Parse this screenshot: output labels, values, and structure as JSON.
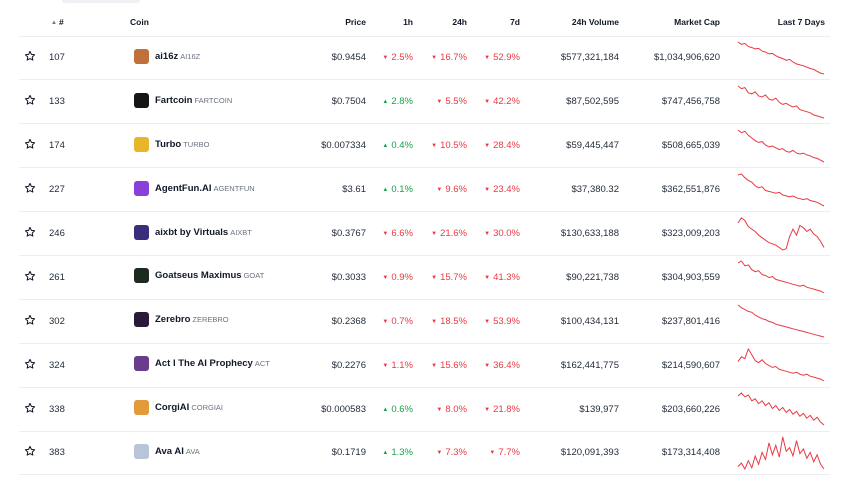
{
  "header": {
    "sort_icon": "triangle-up-icon",
    "rank": "#",
    "coin": "Coin",
    "price": "Price",
    "h1": "1h",
    "h24": "24h",
    "d7": "7d",
    "volume": "24h Volume",
    "market_cap": "Market Cap",
    "last7": "Last 7 Days"
  },
  "colors": {
    "up": "#16a34a",
    "down": "#ea3943",
    "spark": "#ea3943"
  },
  "rows": [
    {
      "rank": "107",
      "name": "ai16z",
      "symbol": "AI16Z",
      "logo": "#c2703a",
      "price": "$0.9454",
      "h1": "2.5%",
      "h1_dir": "down",
      "h24": "16.7%",
      "h24_dir": "down",
      "d7": "52.9%",
      "d7_dir": "down",
      "volume": "$577,321,184",
      "market_cap": "$1,034,906,620",
      "spark": [
        100,
        95,
        97,
        90,
        88,
        85,
        86,
        80,
        78,
        74,
        75,
        70,
        66,
        64,
        60,
        62,
        56,
        52,
        50,
        48,
        45,
        42,
        40,
        36,
        32,
        30
      ]
    },
    {
      "rank": "133",
      "name": "Fartcoin",
      "symbol": "FARTCOIN",
      "logo": "#151515",
      "price": "$0.7504",
      "h1": "2.8%",
      "h1_dir": "up",
      "h24": "5.5%",
      "h24_dir": "down",
      "d7": "42.2%",
      "d7_dir": "down",
      "volume": "$87,502,595",
      "market_cap": "$747,456,758",
      "spark": [
        95,
        90,
        92,
        82,
        80,
        84,
        76,
        74,
        78,
        70,
        68,
        72,
        64,
        60,
        62,
        58,
        55,
        57,
        50,
        48,
        46,
        44,
        40,
        38,
        36,
        34
      ]
    },
    {
      "rank": "174",
      "name": "Turbo",
      "symbol": "TURBO",
      "logo": "#e8b62a",
      "price": "$0.007334",
      "h1": "0.4%",
      "h1_dir": "up",
      "h24": "10.5%",
      "h24_dir": "down",
      "d7": "28.4%",
      "d7_dir": "down",
      "volume": "$59,445,447",
      "market_cap": "$508,665,039",
      "spark": [
        98,
        92,
        95,
        86,
        80,
        74,
        70,
        72,
        64,
        60,
        62,
        58,
        54,
        56,
        50,
        48,
        52,
        46,
        44,
        46,
        42,
        40,
        36,
        34,
        30,
        26
      ]
    },
    {
      "rank": "227",
      "name": "AgentFun.AI",
      "symbol": "AGENTFUN",
      "logo": "#8b3fd9",
      "price": "$3.61",
      "h1": "0.1%",
      "h1_dir": "up",
      "h24": "9.6%",
      "h24_dir": "down",
      "d7": "23.4%",
      "d7_dir": "down",
      "volume": "$37,380.32",
      "market_cap": "$362,551,876",
      "spark": [
        96,
        98,
        90,
        84,
        80,
        72,
        68,
        70,
        62,
        60,
        58,
        56,
        58,
        52,
        50,
        48,
        50,
        46,
        44,
        42,
        44,
        40,
        38,
        36,
        32,
        28
      ]
    },
    {
      "rank": "246",
      "name": "aixbt by Virtuals",
      "symbol": "AIXBT",
      "logo": "#3a2d7a",
      "price": "$0.3767",
      "h1": "6.6%",
      "h1_dir": "down",
      "h24": "21.6%",
      "h24_dir": "down",
      "d7": "30.0%",
      "d7_dir": "down",
      "volume": "$130,633,188",
      "market_cap": "$323,009,203",
      "spark": [
        80,
        88,
        84,
        74,
        70,
        66,
        60,
        56,
        52,
        48,
        46,
        44,
        40,
        36,
        38,
        58,
        70,
        60,
        76,
        72,
        66,
        70,
        62,
        58,
        50,
        40
      ]
    },
    {
      "rank": "261",
      "name": "Goatseus Maximus",
      "symbol": "GOAT",
      "logo": "#1d2a1f",
      "price": "$0.3033",
      "h1": "0.9%",
      "h1_dir": "down",
      "h24": "15.7%",
      "h24_dir": "down",
      "d7": "41.3%",
      "d7_dir": "down",
      "volume": "$90,221,738",
      "market_cap": "$304,903,559",
      "spark": [
        96,
        100,
        90,
        92,
        82,
        78,
        80,
        72,
        70,
        66,
        68,
        62,
        60,
        58,
        56,
        54,
        52,
        50,
        48,
        50,
        46,
        44,
        42,
        40,
        38,
        34
      ]
    },
    {
      "rank": "302",
      "name": "Zerebro",
      "symbol": "ZEREBRO",
      "logo": "#2a1a3a",
      "price": "$0.2368",
      "h1": "0.7%",
      "h1_dir": "down",
      "h24": "18.5%",
      "h24_dir": "down",
      "d7": "53.9%",
      "d7_dir": "down",
      "volume": "$100,434,131",
      "market_cap": "$237,801,416",
      "spark": [
        100,
        94,
        90,
        86,
        84,
        78,
        74,
        70,
        68,
        64,
        62,
        58,
        56,
        54,
        52,
        50,
        48,
        46,
        44,
        42,
        40,
        38,
        36,
        34,
        32,
        30
      ]
    },
    {
      "rank": "324",
      "name": "Act I The AI Prophecy",
      "symbol": "ACT",
      "logo": "#6a3c8c",
      "price": "$0.2276",
      "h1": "1.1%",
      "h1_dir": "down",
      "h24": "15.6%",
      "h24_dir": "down",
      "d7": "36.4%",
      "d7_dir": "down",
      "volume": "$162,441,775",
      "market_cap": "$214,590,607",
      "spark": [
        70,
        80,
        76,
        96,
        84,
        72,
        68,
        74,
        66,
        62,
        58,
        60,
        54,
        52,
        50,
        48,
        46,
        48,
        44,
        42,
        44,
        40,
        38,
        36,
        34,
        30
      ]
    },
    {
      "rank": "338",
      "name": "CorgiAI",
      "symbol": "CORGIAI",
      "logo": "#e39a3b",
      "price": "$0.000583",
      "h1": "0.6%",
      "h1_dir": "up",
      "h24": "8.0%",
      "h24_dir": "down",
      "d7": "21.8%",
      "d7_dir": "down",
      "volume": "$139,977",
      "market_cap": "$203,660,226",
      "spark": [
        90,
        96,
        88,
        92,
        80,
        84,
        74,
        80,
        70,
        76,
        64,
        70,
        60,
        66,
        56,
        62,
        52,
        58,
        48,
        54,
        44,
        50,
        40,
        46,
        36,
        30
      ]
    },
    {
      "rank": "383",
      "name": "Ava AI",
      "symbol": "AVA",
      "logo": "#b8c4d8",
      "price": "$0.1719",
      "h1": "1.3%",
      "h1_dir": "up",
      "h24": "7.3%",
      "h24_dir": "down",
      "d7": "7.7%",
      "d7_dir": "down",
      "volume": "$120,091,393",
      "market_cap": "$173,314,408",
      "spark": [
        40,
        46,
        36,
        50,
        38,
        58,
        44,
        64,
        52,
        80,
        60,
        76,
        56,
        90,
        66,
        72,
        58,
        84,
        62,
        70,
        54,
        64,
        48,
        60,
        44,
        36
      ]
    }
  ]
}
